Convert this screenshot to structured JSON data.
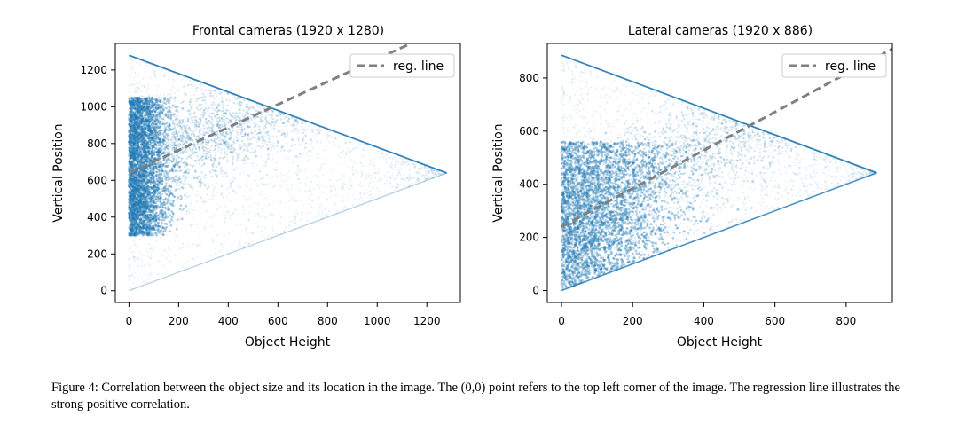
{
  "caption": "Figure 4: Correlation between the object size and its location in the image. The (0,0) point refers to the top left corner of the image. The regression line illustrates the strong positive correlation.",
  "colors": {
    "points": "#1f77b4",
    "reg_line": "#808080"
  },
  "chart_data": [
    {
      "type": "scatter",
      "title": "Frontal cameras (1920 x 1280)",
      "xlabel": "Object Height",
      "ylabel": "Vertical Position",
      "xlim": [
        -55,
        1335
      ],
      "ylim": [
        -64,
        1344
      ],
      "xticks": [
        0,
        200,
        400,
        600,
        800,
        1000,
        1200
      ],
      "yticks": [
        0,
        200,
        400,
        600,
        800,
        1000,
        1200
      ],
      "legend": {
        "label": "reg. line",
        "position": "top-right"
      },
      "image_height": 1280,
      "reg_line": {
        "intercept": 640,
        "slope": 0.62
      },
      "density": {
        "dense_region": {
          "x_max": 120,
          "y_range": [
            300,
            1050
          ]
        },
        "band_spread": 130
      }
    },
    {
      "type": "scatter",
      "title": "Lateral cameras (1920 x 886)",
      "xlabel": "Object Height",
      "ylabel": "Vertical Position",
      "xlim": [
        -40,
        930
      ],
      "ylim": [
        -45,
        930
      ],
      "xticks": [
        0,
        200,
        400,
        600,
        800
      ],
      "yticks": [
        0,
        200,
        400,
        600,
        800
      ],
      "legend": {
        "label": "reg. line",
        "position": "top-right"
      },
      "image_height": 886,
      "reg_line": {
        "intercept": 240,
        "slope": 0.72
      },
      "density": {
        "dense_region": {
          "x_max": 250,
          "y_range": [
            0,
            560
          ]
        },
        "band_spread": 110
      }
    }
  ]
}
